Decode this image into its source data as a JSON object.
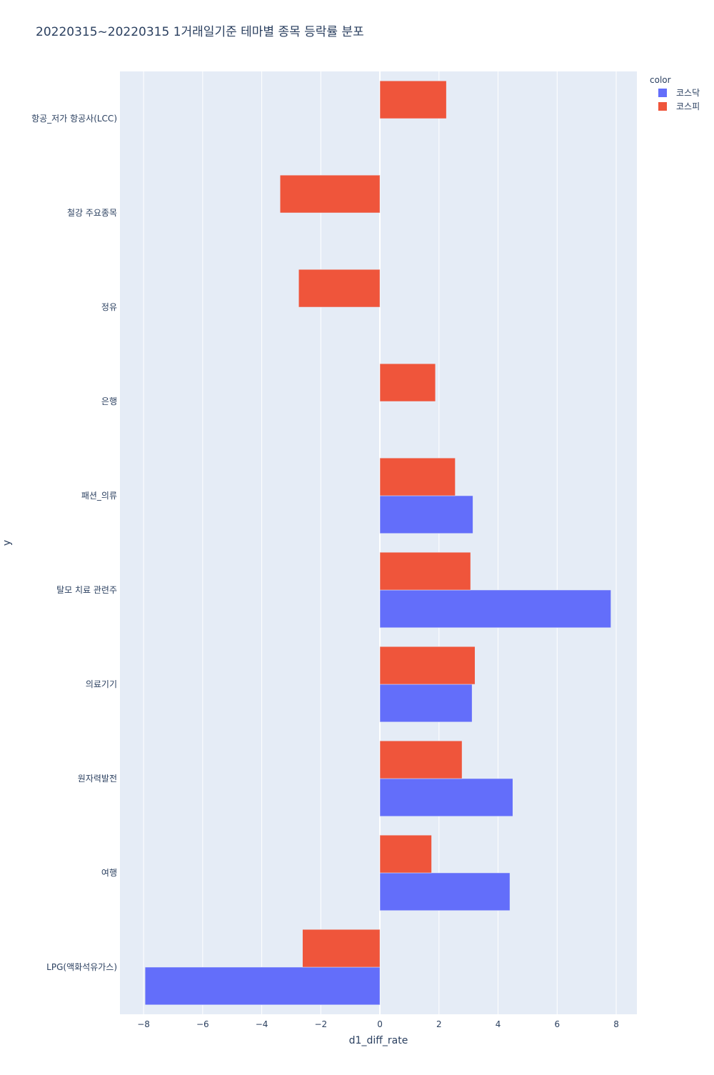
{
  "chart_data": {
    "type": "bar",
    "orientation": "horizontal",
    "title": "20220315~20220315 1거래일기준 테마별 종목 등락률 분포",
    "xlabel": "d1_diff_rate",
    "ylabel": "y",
    "xlim": [
      -8.8,
      8.7
    ],
    "xticks": [
      -8,
      -6,
      -4,
      -2,
      0,
      2,
      4,
      6,
      8
    ],
    "xtick_labels": [
      "−8",
      "−6",
      "−4",
      "−2",
      "0",
      "2",
      "4",
      "6",
      "8"
    ],
    "grid": true,
    "legend_position": "top-right",
    "legend_title": "color",
    "categories": [
      "항공_저가 항공사(LCC)",
      "철강 주요종목",
      "정유",
      "은행",
      "패션_의류",
      "탈모 치료 관련주",
      "의료기기",
      "원자력발전",
      "여행",
      "LPG(액화석유가스)"
    ],
    "series": [
      {
        "name": "코스닥",
        "color": "#636efa",
        "values": [
          null,
          null,
          null,
          null,
          3.15,
          7.82,
          3.12,
          4.5,
          4.4,
          -7.95
        ]
      },
      {
        "name": "코스피",
        "color": "#ef553b",
        "values": [
          2.25,
          -3.38,
          -2.75,
          1.88,
          2.55,
          3.07,
          3.22,
          2.78,
          1.75,
          -2.62
        ]
      }
    ]
  }
}
